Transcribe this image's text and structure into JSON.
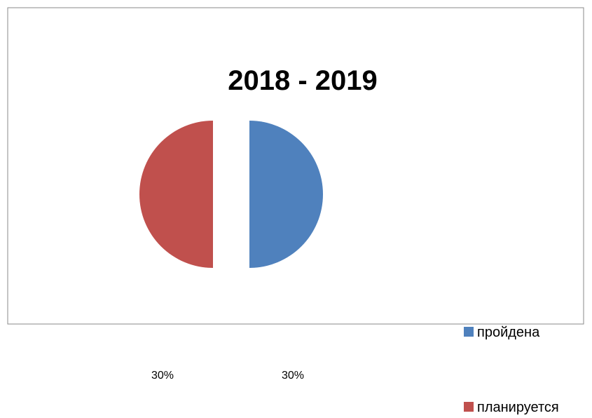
{
  "chart_data": {
    "type": "pie",
    "title": "2018 - 2019",
    "categories": [
      "пройдена",
      "планируется"
    ],
    "values": [
      30,
      30
    ],
    "labels": [
      "30%",
      "30%"
    ],
    "colors": [
      "#4F81BD",
      "#C0504D"
    ],
    "legend_position": "right",
    "exploded": true
  }
}
